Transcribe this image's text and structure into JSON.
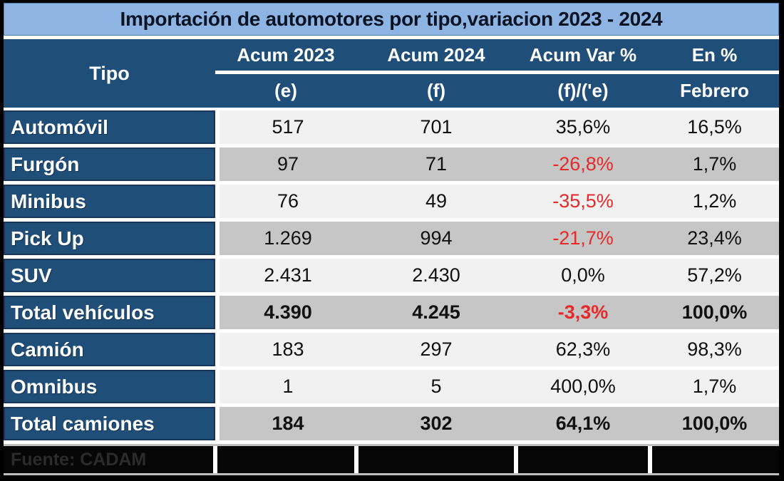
{
  "title": "Importación de automotores por tipo,variacion 2023 - 2024",
  "table": {
    "tipo_header": "Tipo",
    "columns": [
      {
        "label": "Acum 2023",
        "sub": "(e)"
      },
      {
        "label": "Acum 2024",
        "sub": "(f)"
      },
      {
        "label": "Acum Var %",
        "sub": "(f)/('e)"
      },
      {
        "label": "En %",
        "sub": "Febrero"
      }
    ],
    "rows": [
      {
        "label": "Automóvil",
        "values": [
          "517",
          "701",
          "35,6%",
          "16,5%"
        ],
        "shade": "light",
        "total": false,
        "var_negative": false
      },
      {
        "label": "Furgón",
        "values": [
          "97",
          "71",
          "-26,8%",
          "1,7%"
        ],
        "shade": "gray",
        "total": false,
        "var_negative": true
      },
      {
        "label": "Minibus",
        "values": [
          "76",
          "49",
          "-35,5%",
          "1,2%"
        ],
        "shade": "light",
        "total": false,
        "var_negative": true
      },
      {
        "label": "Pick Up",
        "values": [
          "1.269",
          "994",
          "-21,7%",
          "23,4%"
        ],
        "shade": "gray",
        "total": false,
        "var_negative": true
      },
      {
        "label": "SUV",
        "values": [
          "2.431",
          "2.430",
          "0,0%",
          "57,2%"
        ],
        "shade": "light",
        "total": false,
        "var_negative": false
      },
      {
        "label": "Total vehículos",
        "values": [
          "4.390",
          "4.245",
          "-3,3%",
          "100,0%"
        ],
        "shade": "gray",
        "total": true,
        "var_negative": true
      },
      {
        "label": "Camión",
        "values": [
          "183",
          "297",
          "62,3%",
          "98,3%"
        ],
        "shade": "light",
        "total": false,
        "var_negative": false
      },
      {
        "label": "Omnibus",
        "values": [
          "1",
          "5",
          "400,0%",
          "1,7%"
        ],
        "shade": "light",
        "total": false,
        "var_negative": false
      },
      {
        "label": "Total camiones",
        "values": [
          "184",
          "302",
          "64,1%",
          "100,0%"
        ],
        "shade": "gray",
        "total": true,
        "var_negative": false
      }
    ]
  },
  "footer": {
    "source": "Fuente: CADAM"
  },
  "colors": {
    "frame": "#000000",
    "title_bg": "#8DB4E2",
    "title_text": "#0B1322",
    "header_bg": "#1F4E79",
    "header_border": "#16365C",
    "row_light_bg": "#F1F1F1",
    "row_gray_bg": "#C6C6C6",
    "value_text": "#111111",
    "negative_text": "#E62A2A",
    "footer_bg": "#C0C0C0",
    "footer_cell_bg": "#060606",
    "footer_text": "#2B2B2B"
  },
  "chart_data": {
    "type": "table",
    "title": "Importación de automotores por tipo,variacion 2023 - 2024",
    "columns": [
      "Tipo",
      "Acum 2023 (e)",
      "Acum 2024 (f)",
      "Acum Var % (f)/('e)",
      "En % Febrero"
    ],
    "rows": [
      [
        "Automóvil",
        517,
        701,
        "35,6%",
        "16,5%"
      ],
      [
        "Furgón",
        97,
        71,
        "-26,8%",
        "1,7%"
      ],
      [
        "Minibus",
        76,
        49,
        "-35,5%",
        "1,2%"
      ],
      [
        "Pick Up",
        1269,
        994,
        "-21,7%",
        "23,4%"
      ],
      [
        "SUV",
        2431,
        2430,
        "0,0%",
        "57,2%"
      ],
      [
        "Total vehículos",
        4390,
        4245,
        "-3,3%",
        "100,0%"
      ],
      [
        "Camión",
        183,
        297,
        "62,3%",
        "98,3%"
      ],
      [
        "Omnibus",
        1,
        5,
        "400,0%",
        "1,7%"
      ],
      [
        "Total camiones",
        184,
        302,
        "64,1%",
        "100,0%"
      ]
    ],
    "source": "Fuente: CADAM",
    "notes": "Negative variation values rendered in red; total rows bold on gray background"
  }
}
